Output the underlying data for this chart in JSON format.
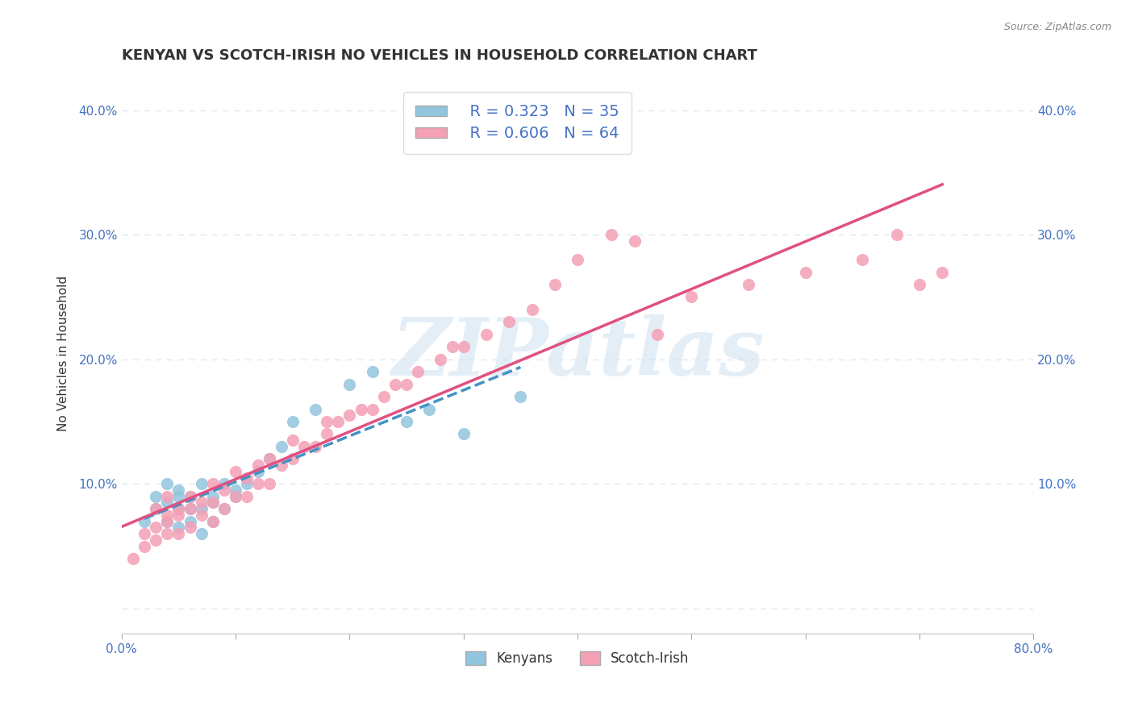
{
  "title": "KENYAN VS SCOTCH-IRISH NO VEHICLES IN HOUSEHOLD CORRELATION CHART",
  "source": "Source: ZipAtlas.com",
  "xlabel": "",
  "ylabel": "No Vehicles in Household",
  "xlim": [
    0.0,
    0.8
  ],
  "ylim": [
    -0.02,
    0.43
  ],
  "xticks": [
    0.0,
    0.1,
    0.2,
    0.3,
    0.4,
    0.5,
    0.6,
    0.7,
    0.8
  ],
  "yticks": [
    0.0,
    0.1,
    0.2,
    0.3,
    0.4
  ],
  "ytick_labels": [
    "",
    "10.0%",
    "20.0%",
    "30.0%",
    "40.0%"
  ],
  "xtick_labels": [
    "0.0%",
    "",
    "",
    "",
    "",
    "",
    "",
    "",
    "80.0%"
  ],
  "legend_R1": "R = 0.323",
  "legend_N1": "N = 35",
  "legend_R2": "R = 0.606",
  "legend_N2": "N = 64",
  "color_kenyan": "#6baed6",
  "color_scotch": "#f4a0b5",
  "color_kenyan_line": "#4292c6",
  "color_scotch_line": "#e05080",
  "color_kenyan_scatter": "#92c5de",
  "color_scotch_scatter": "#f4a0b5",
  "watermark": "ZIPatlas",
  "watermark_color": "#c8dff0",
  "background_color": "#ffffff",
  "grid_color": "#e0e8f0",
  "kenyan_x": [
    0.02,
    0.03,
    0.03,
    0.04,
    0.04,
    0.04,
    0.05,
    0.05,
    0.05,
    0.05,
    0.06,
    0.06,
    0.06,
    0.07,
    0.07,
    0.07,
    0.08,
    0.08,
    0.08,
    0.09,
    0.09,
    0.1,
    0.1,
    0.11,
    0.12,
    0.13,
    0.14,
    0.15,
    0.17,
    0.2,
    0.22,
    0.25,
    0.27,
    0.3,
    0.35
  ],
  "kenyan_y": [
    0.07,
    0.08,
    0.09,
    0.07,
    0.085,
    0.1,
    0.065,
    0.08,
    0.09,
    0.095,
    0.07,
    0.08,
    0.09,
    0.06,
    0.08,
    0.1,
    0.07,
    0.085,
    0.09,
    0.08,
    0.1,
    0.09,
    0.095,
    0.1,
    0.11,
    0.12,
    0.13,
    0.15,
    0.16,
    0.18,
    0.19,
    0.15,
    0.16,
    0.14,
    0.17
  ],
  "scotch_x": [
    0.01,
    0.02,
    0.02,
    0.03,
    0.03,
    0.03,
    0.04,
    0.04,
    0.04,
    0.04,
    0.05,
    0.05,
    0.05,
    0.06,
    0.06,
    0.06,
    0.07,
    0.07,
    0.08,
    0.08,
    0.08,
    0.09,
    0.09,
    0.1,
    0.1,
    0.11,
    0.11,
    0.12,
    0.12,
    0.13,
    0.13,
    0.14,
    0.15,
    0.15,
    0.16,
    0.17,
    0.18,
    0.18,
    0.19,
    0.2,
    0.21,
    0.22,
    0.23,
    0.24,
    0.25,
    0.26,
    0.28,
    0.29,
    0.3,
    0.32,
    0.34,
    0.36,
    0.38,
    0.4,
    0.43,
    0.45,
    0.47,
    0.5,
    0.55,
    0.6,
    0.65,
    0.68,
    0.7,
    0.72
  ],
  "scotch_y": [
    0.04,
    0.05,
    0.06,
    0.055,
    0.065,
    0.08,
    0.06,
    0.07,
    0.075,
    0.09,
    0.06,
    0.075,
    0.08,
    0.065,
    0.08,
    0.09,
    0.075,
    0.085,
    0.07,
    0.085,
    0.1,
    0.08,
    0.095,
    0.09,
    0.11,
    0.09,
    0.105,
    0.1,
    0.115,
    0.1,
    0.12,
    0.115,
    0.12,
    0.135,
    0.13,
    0.13,
    0.14,
    0.15,
    0.15,
    0.155,
    0.16,
    0.16,
    0.17,
    0.18,
    0.18,
    0.19,
    0.2,
    0.21,
    0.21,
    0.22,
    0.23,
    0.24,
    0.26,
    0.28,
    0.3,
    0.295,
    0.22,
    0.25,
    0.26,
    0.27,
    0.28,
    0.3,
    0.26,
    0.27
  ],
  "title_fontsize": 13,
  "label_fontsize": 11,
  "tick_fontsize": 11,
  "legend_fontsize": 14
}
